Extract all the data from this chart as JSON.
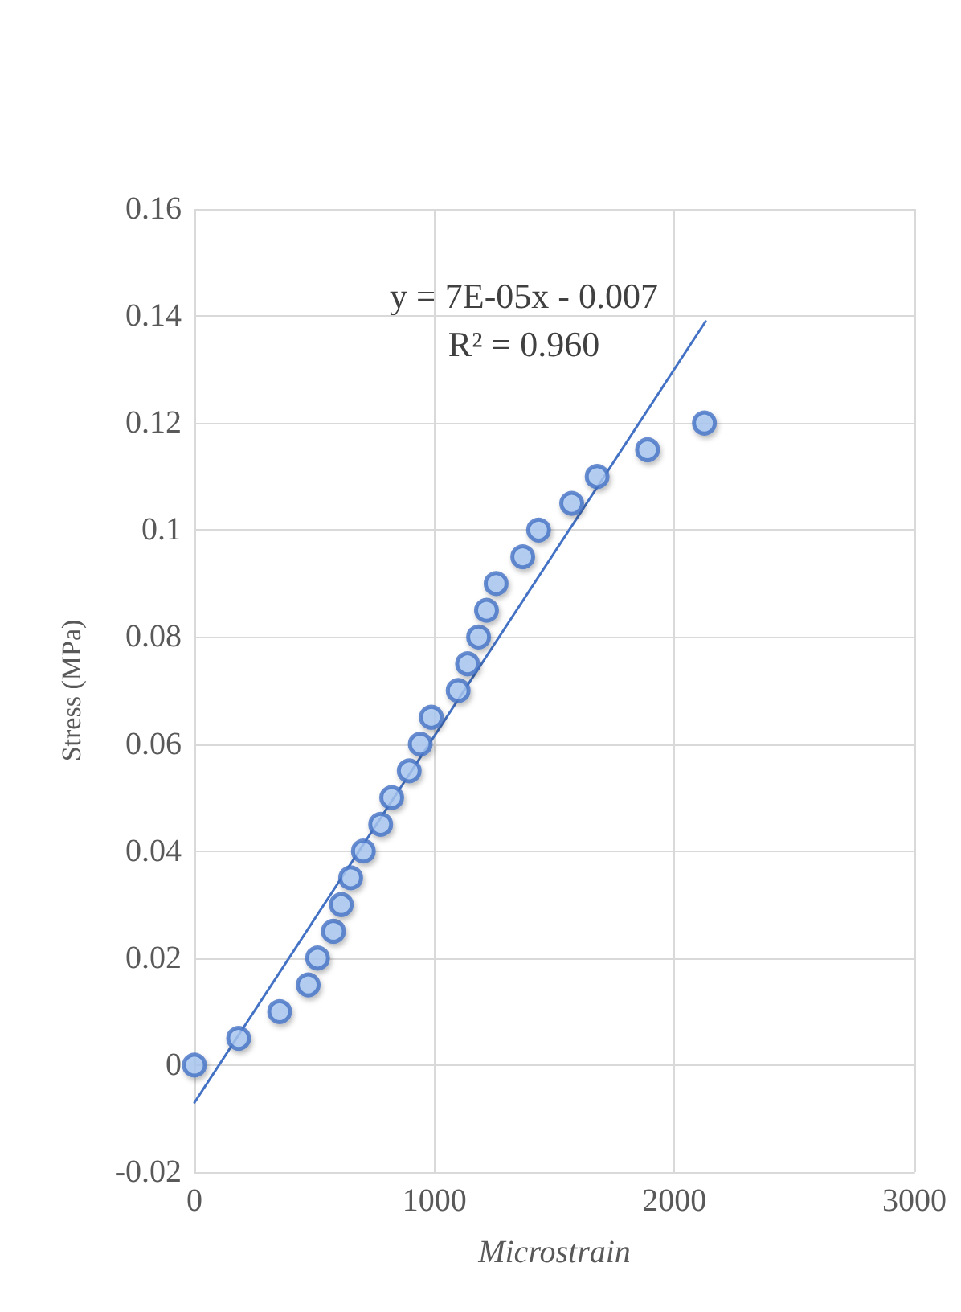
{
  "chart_data": {
    "type": "scatter",
    "xlabel": "Microstrain",
    "ylabel": "Stress (MPa)",
    "x": [
      0,
      184,
      355,
      474,
      513,
      579,
      612,
      651,
      704,
      776,
      822,
      895,
      941,
      987,
      1099,
      1138,
      1184,
      1217,
      1257,
      1368,
      1434,
      1572,
      1678,
      1888,
      2125
    ],
    "series": [
      {
        "color": "#4472c4",
        "marker": "circle",
        "values": [
          0,
          0.005,
          0.01,
          0.015,
          0.02,
          0.025,
          0.03,
          0.035,
          0.04,
          0.045,
          0.05,
          0.055,
          0.06,
          0.065,
          0.07,
          0.075,
          0.08,
          0.085,
          0.09,
          0.095,
          0.1,
          0.105,
          0.11,
          0.115,
          0.12
        ]
      },
      {
        "type": "line",
        "color": "#4472c4",
        "x": [
          0,
          2130
        ],
        "values": [
          -0.007,
          0.139
        ]
      }
    ],
    "xlim": [
      0,
      3000
    ],
    "xticks": [
      0,
      1000,
      2000,
      3000
    ],
    "ylim": [
      -0.02,
      0.16
    ],
    "yticks": [
      -0.02,
      0,
      0.02,
      0.04,
      0.06,
      0.08,
      0.1,
      0.12,
      0.14,
      0.16
    ],
    "grid": true,
    "line_style": "solid",
    "annotations": [
      "y = 7E-05x - 0.007",
      "R² = 0.960"
    ]
  }
}
